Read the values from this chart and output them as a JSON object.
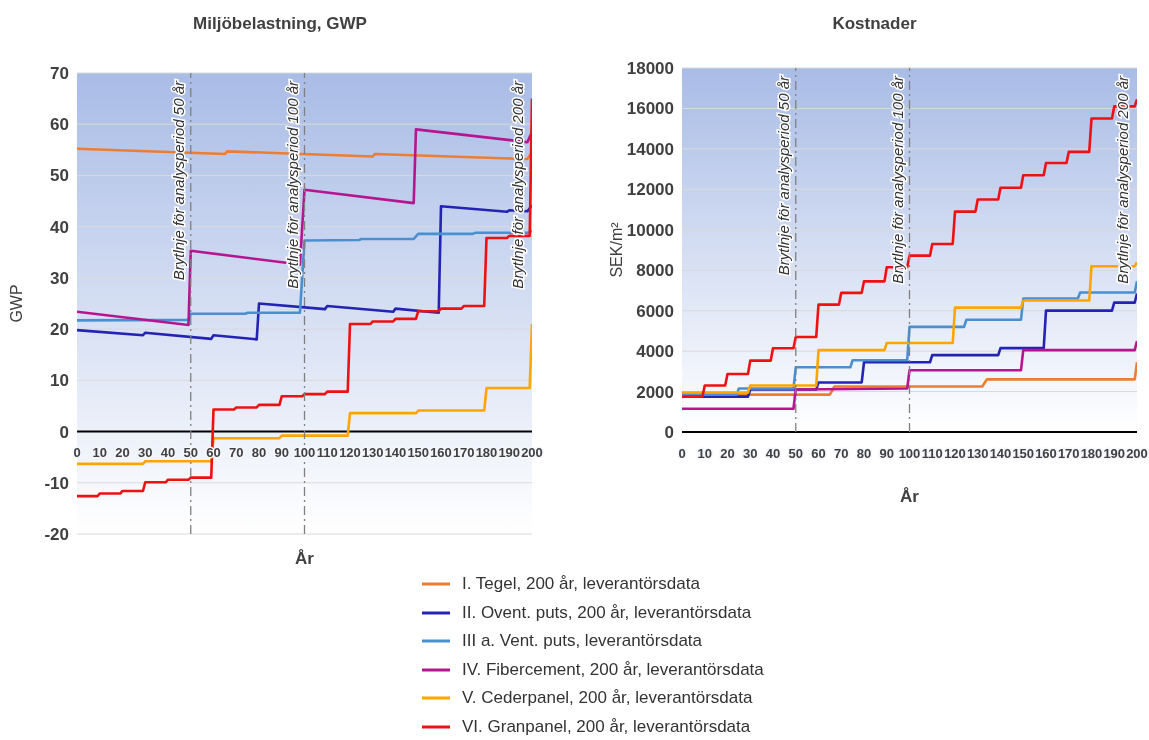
{
  "chart_data": [
    {
      "type": "line",
      "title": "Miljöbelastning, GWP",
      "xlabel": "År",
      "ylabel": "GWP",
      "xlim": [
        0,
        200
      ],
      "xticks": [
        0,
        10,
        20,
        30,
        40,
        50,
        60,
        70,
        80,
        90,
        100,
        110,
        120,
        130,
        140,
        150,
        160,
        170,
        180,
        190,
        200
      ],
      "ylim": [
        -20,
        70
      ],
      "yticks": [
        -20,
        -10,
        0,
        10,
        20,
        30,
        40,
        50,
        60,
        70
      ],
      "grid": "y",
      "legend": "bottom",
      "line_style": "solid",
      "marker": "none",
      "ref_lines": [
        {
          "axis": "x",
          "value": 50,
          "label": "Brytlnje för analysperiod 50 år",
          "color": "#808080",
          "line_style": "dashed"
        },
        {
          "axis": "x",
          "value": 100,
          "label": "Brytlnje för analysperiod 100 år",
          "color": "#808080",
          "line_style": "dashed"
        }
      ],
      "annotations": [
        "Brytlnje för analysperiod 200 år"
      ],
      "series": [
        {
          "name": "I. Tegel, 200 år, leverantörsdata",
          "color": "#ed7d31",
          "x": [
            0,
            65,
            66,
            130,
            131,
            198,
            200
          ],
          "values": [
            55.2,
            54.2,
            54.7,
            53.7,
            54.2,
            53.2,
            54.5
          ]
        },
        {
          "name": "II. Ovent. puts, 200 år, leverantörsdata",
          "color": "#2424b4",
          "x": [
            0,
            29,
            30,
            59,
            60,
            79,
            80,
            109,
            110,
            139,
            140,
            159,
            160,
            189,
            190,
            198,
            200
          ],
          "values": [
            19.8,
            18.8,
            19.3,
            18.1,
            18.8,
            18,
            25,
            23.9,
            24.5,
            23.4,
            24,
            23.2,
            44,
            42.9,
            43.2,
            43,
            44.2
          ]
        },
        {
          "name": "III a. Vent. puts, leverantörsdata",
          "color": "#4a90d0",
          "x": [
            0,
            49,
            50,
            74,
            75,
            98,
            100,
            124,
            125,
            148,
            150,
            174,
            175,
            198,
            200
          ],
          "values": [
            21.7,
            21.8,
            23,
            23,
            23.2,
            23.2,
            37.3,
            37.4,
            37.6,
            37.6,
            38.6,
            38.6,
            38.8,
            38.8,
            39.2
          ]
        },
        {
          "name": "IV. Fibercement, 200 år, leverantörsdata",
          "color": "#b5168f",
          "x": [
            0,
            49,
            50,
            98,
            100,
            148,
            149,
            198,
            200
          ],
          "values": [
            23.4,
            20.8,
            35.3,
            32.6,
            47.2,
            44.6,
            59,
            56.5,
            58.5
          ]
        },
        {
          "name": "V. Cederpanel, 200 år, leverantörsdata",
          "color": "#ffa500",
          "x": [
            0,
            29,
            30,
            59,
            60,
            89,
            90,
            119,
            120,
            149,
            150,
            179,
            180,
            199,
            200
          ],
          "values": [
            -6.3,
            -6.3,
            -5.8,
            -5.8,
            -1.3,
            -1.3,
            -0.8,
            -0.8,
            3.6,
            3.6,
            4.1,
            4.1,
            8.5,
            8.5,
            21
          ]
        },
        {
          "name": "VI. Granpanel, 200 år, leverantörsdata",
          "color": "#ee1111",
          "x": [
            0,
            9,
            10,
            19,
            20,
            29,
            30,
            39,
            40,
            49,
            50,
            59,
            60,
            69,
            70,
            79,
            80,
            89,
            90,
            99,
            100,
            109,
            110,
            119,
            120,
            129,
            130,
            139,
            140,
            149,
            150,
            159,
            160,
            169,
            170,
            179,
            180,
            189,
            190,
            199,
            200
          ],
          "values": [
            -12.6,
            -12.6,
            -12.1,
            -12.1,
            -11.6,
            -11.6,
            -9.9,
            -9.9,
            -9.4,
            -9.4,
            -9,
            -9,
            4.3,
            4.3,
            4.7,
            4.7,
            5.2,
            5.2,
            6.9,
            6.9,
            7.3,
            7.3,
            7.8,
            7.8,
            21,
            21,
            21.5,
            21.5,
            22,
            22,
            23.5,
            23.5,
            24,
            24,
            24.5,
            24.5,
            37.8,
            37.8,
            38.2,
            38.2,
            65
          ]
        }
      ]
    },
    {
      "type": "line",
      "title": "Kostnader",
      "xlabel": "År",
      "ylabel": "SEK/m²",
      "xlim": [
        0,
        200
      ],
      "xticks": [
        0,
        10,
        20,
        30,
        40,
        50,
        60,
        70,
        80,
        90,
        100,
        110,
        120,
        130,
        140,
        150,
        160,
        170,
        180,
        190,
        200
      ],
      "ylim": [
        0,
        18000
      ],
      "yticks": [
        0,
        2000,
        4000,
        6000,
        8000,
        10000,
        12000,
        14000,
        16000,
        18000
      ],
      "grid": "y",
      "line_style": "solid",
      "marker": "none",
      "ref_lines": [
        {
          "axis": "x",
          "value": 50,
          "label": "Brytlnje för analysperiod 50 år",
          "color": "#808080",
          "line_style": "dashed"
        },
        {
          "axis": "x",
          "value": 100,
          "label": "Brytlnje för analysperiod 100 år",
          "color": "#808080",
          "line_style": "dashed"
        }
      ],
      "annotations": [
        "Brytlnje för analysperiod 200 år"
      ],
      "series": [
        {
          "color": "#ed7d31",
          "x": [
            0,
            65,
            67,
            132,
            134,
            199,
            200
          ],
          "values": [
            1850,
            1850,
            2250,
            2250,
            2600,
            2600,
            3450
          ]
        },
        {
          "color": "#2424b4",
          "x": [
            0,
            29,
            30,
            59,
            60,
            79,
            80,
            109,
            110,
            139,
            140,
            159,
            160,
            189,
            190,
            199,
            200
          ],
          "values": [
            1750,
            1750,
            2100,
            2100,
            2450,
            2450,
            3450,
            3450,
            3800,
            3800,
            4150,
            4150,
            6000,
            6000,
            6400,
            6400,
            6850
          ]
        },
        {
          "color": "#4a90d0",
          "x": [
            0,
            24,
            25,
            49,
            50,
            74,
            75,
            99,
            100,
            124,
            125,
            149,
            150,
            174,
            175,
            199,
            200
          ],
          "values": [
            1850,
            1850,
            2150,
            2150,
            3200,
            3200,
            3550,
            3550,
            5200,
            5200,
            5550,
            5550,
            6600,
            6600,
            6900,
            6900,
            7450
          ]
        },
        {
          "color": "#b5168f",
          "x": [
            0,
            49,
            50,
            99,
            100,
            149,
            150,
            199,
            200
          ],
          "values": [
            1150,
            1150,
            2100,
            2150,
            3050,
            3050,
            4050,
            4050,
            4500
          ]
        },
        {
          "color": "#ffa500",
          "x": [
            0,
            29,
            30,
            59,
            60,
            89,
            90,
            119,
            120,
            149,
            150,
            179,
            180,
            199,
            200
          ],
          "values": [
            1950,
            1950,
            2300,
            2300,
            4050,
            4050,
            4400,
            4400,
            6150,
            6150,
            6500,
            6500,
            8200,
            8200,
            8400
          ]
        },
        {
          "color": "#ee1111",
          "x": [
            0,
            9,
            10,
            19,
            20,
            29,
            30,
            39,
            40,
            49,
            50,
            59,
            60,
            69,
            70,
            79,
            80,
            89,
            90,
            99,
            100,
            109,
            110,
            119,
            120,
            129,
            130,
            139,
            140,
            149,
            150,
            159,
            160,
            169,
            170,
            179,
            180,
            189,
            190,
            199,
            200
          ],
          "values": [
            1750,
            1750,
            2300,
            2300,
            2870,
            2870,
            3530,
            3530,
            4140,
            4140,
            4700,
            4700,
            6300,
            6300,
            6880,
            6880,
            7450,
            7450,
            8150,
            8150,
            8720,
            8720,
            9300,
            9300,
            10900,
            10900,
            11500,
            11500,
            12080,
            12080,
            12700,
            12700,
            13300,
            13300,
            13850,
            13850,
            15500,
            15500,
            16100,
            16100,
            16450
          ]
        }
      ]
    }
  ]
}
